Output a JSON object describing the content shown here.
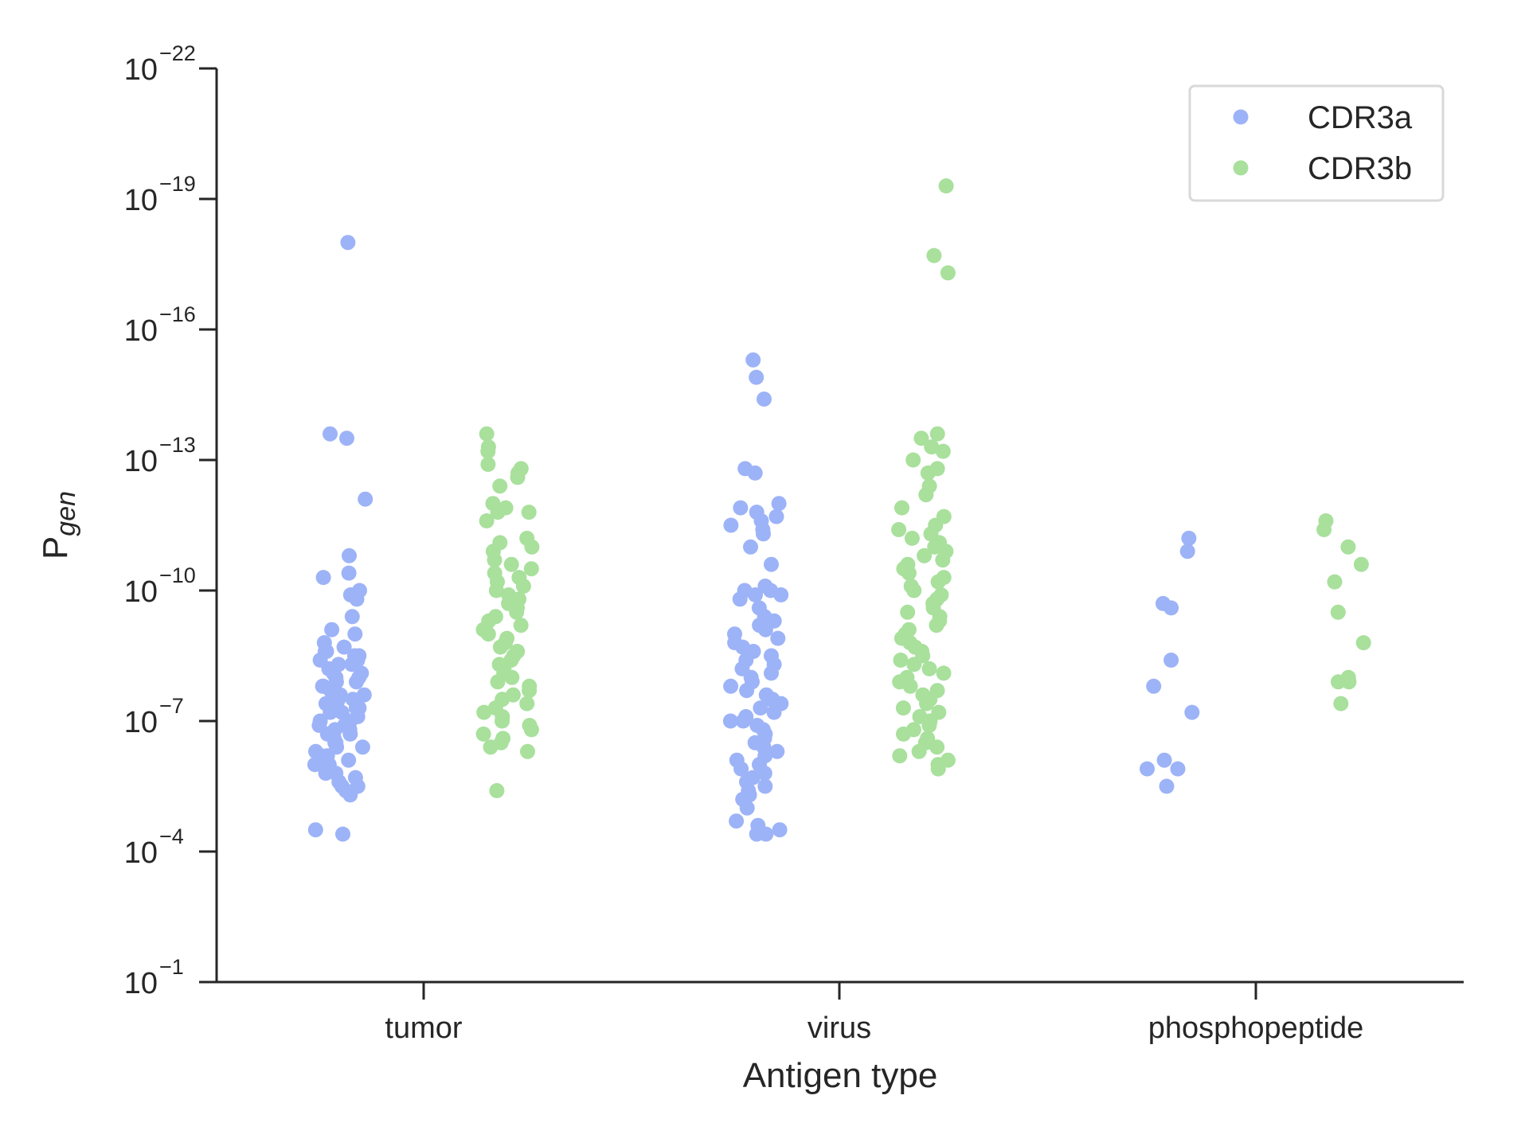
{
  "chart_data": {
    "type": "scatter",
    "subtype": "strip",
    "xlabel": "Antigen type",
    "ylabel": "P",
    "ylabel_sub": "gen",
    "categories": [
      "tumor",
      "virus",
      "phosphopeptide"
    ],
    "y_scale": "log",
    "y_axis_inverted": true,
    "y_range_log10": [
      -1,
      -22
    ],
    "y_ticks_exponent": [
      -22,
      -19,
      -16,
      -13,
      -10,
      -7,
      -4,
      -1
    ],
    "y_tick_base": "10",
    "y_tick_exponents_text": [
      "−22",
      "−19",
      "−16",
      "−13",
      "−10",
      "−7",
      "−4",
      "−1"
    ],
    "grid": false,
    "legend_position": "top-right",
    "series": [
      {
        "name": "CDR3a",
        "color": "#9db3f7",
        "points_log10": {
          "tumor": [
            -18.0,
            -13.6,
            -13.5,
            -12.1,
            -10.8,
            -10.4,
            -10.3,
            -10.0,
            -9.9,
            -9.8,
            -9.4,
            -9.1,
            -9.0,
            -8.8,
            -8.7,
            -8.6,
            -8.6,
            -8.5,
            -8.5,
            -8.4,
            -8.4,
            -8.3,
            -8.3,
            -8.2,
            -8.2,
            -8.1,
            -8.1,
            -8.0,
            -8.0,
            -7.9,
            -7.9,
            -7.8,
            -7.8,
            -7.7,
            -7.7,
            -7.6,
            -7.6,
            -7.5,
            -7.5,
            -7.4,
            -7.4,
            -7.3,
            -7.3,
            -7.2,
            -7.2,
            -7.1,
            -7.0,
            -7.0,
            -6.9,
            -6.9,
            -6.8,
            -6.8,
            -6.7,
            -6.7,
            -6.6,
            -6.5,
            -6.5,
            -6.4,
            -6.4,
            -6.3,
            -6.2,
            -6.2,
            -6.1,
            -6.0,
            -6.0,
            -5.9,
            -5.8,
            -5.8,
            -5.7,
            -5.6,
            -5.5,
            -5.5,
            -5.4,
            -5.3,
            -4.5,
            -4.4
          ],
          "virus": [
            -15.3,
            -14.9,
            -14.4,
            -12.8,
            -12.7,
            -12.0,
            -11.9,
            -11.8,
            -11.7,
            -11.6,
            -11.5,
            -11.4,
            -11.3,
            -11.0,
            -10.6,
            -10.1,
            -10.0,
            -10.0,
            -9.9,
            -9.9,
            -9.8,
            -9.6,
            -9.4,
            -9.3,
            -9.2,
            -9.1,
            -9.0,
            -8.9,
            -8.8,
            -8.7,
            -8.6,
            -8.5,
            -8.4,
            -8.3,
            -8.2,
            -8.1,
            -8.0,
            -7.9,
            -7.8,
            -7.7,
            -7.6,
            -7.5,
            -7.5,
            -7.4,
            -7.3,
            -7.2,
            -7.1,
            -7.0,
            -7.0,
            -6.9,
            -6.8,
            -6.7,
            -6.6,
            -6.5,
            -6.4,
            -6.3,
            -6.2,
            -6.1,
            -6.0,
            -5.9,
            -5.8,
            -5.7,
            -5.6,
            -5.5,
            -5.4,
            -5.3,
            -5.2,
            -5.0,
            -4.7,
            -4.6,
            -4.5,
            -4.4,
            -4.4
          ],
          "phosphopeptide": [
            -11.2,
            -10.9,
            -9.7,
            -9.6,
            -8.4,
            -7.8,
            -7.2,
            -6.1,
            -5.9,
            -5.9,
            -5.5
          ]
        }
      },
      {
        "name": "CDR3b",
        "color": "#a8e09c",
        "points_log10": {
          "tumor": [
            -13.6,
            -13.3,
            -13.2,
            -12.9,
            -12.8,
            -12.7,
            -12.6,
            -12.4,
            -12.0,
            -11.9,
            -11.8,
            -11.8,
            -11.6,
            -11.2,
            -11.1,
            -11.0,
            -10.9,
            -10.7,
            -10.6,
            -10.5,
            -10.4,
            -10.3,
            -10.2,
            -10.1,
            -10.0,
            -9.9,
            -9.8,
            -9.7,
            -9.6,
            -9.5,
            -9.4,
            -9.3,
            -9.2,
            -9.1,
            -9.0,
            -8.9,
            -8.8,
            -8.7,
            -8.6,
            -8.5,
            -8.4,
            -8.3,
            -8.2,
            -8.1,
            -8.0,
            -7.9,
            -7.8,
            -7.7,
            -7.6,
            -7.5,
            -7.4,
            -7.3,
            -7.2,
            -7.1,
            -7.0,
            -6.9,
            -6.8,
            -6.7,
            -6.6,
            -6.5,
            -6.4,
            -6.3,
            -5.4
          ],
          "virus": [
            -19.3,
            -17.7,
            -17.3,
            -13.6,
            -13.5,
            -13.3,
            -13.2,
            -13.0,
            -12.8,
            -12.7,
            -12.4,
            -12.2,
            -11.9,
            -11.7,
            -11.5,
            -11.4,
            -11.3,
            -11.2,
            -11.1,
            -11.0,
            -10.9,
            -10.8,
            -10.7,
            -10.6,
            -10.5,
            -10.4,
            -10.3,
            -10.2,
            -10.1,
            -10.0,
            -9.9,
            -9.8,
            -9.7,
            -9.6,
            -9.5,
            -9.4,
            -9.3,
            -9.2,
            -9.1,
            -9.0,
            -8.9,
            -8.8,
            -8.7,
            -8.6,
            -8.5,
            -8.4,
            -8.3,
            -8.2,
            -8.1,
            -8.0,
            -7.9,
            -7.8,
            -7.7,
            -7.6,
            -7.5,
            -7.4,
            -7.3,
            -7.2,
            -7.1,
            -7.0,
            -6.9,
            -6.8,
            -6.7,
            -6.6,
            -6.5,
            -6.4,
            -6.3,
            -6.2,
            -6.1,
            -6.0,
            -5.9
          ],
          "phosphopeptide": [
            -11.6,
            -11.4,
            -11.0,
            -10.6,
            -10.2,
            -9.5,
            -8.8,
            -8.0,
            -7.9,
            -7.9,
            -7.4
          ]
        }
      }
    ]
  }
}
